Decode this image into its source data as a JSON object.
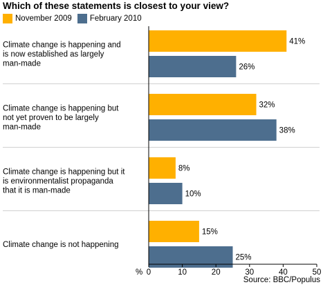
{
  "chart_data": {
    "type": "bar",
    "orientation": "horizontal",
    "title": "Which of these statements is closest to your view?",
    "categories": [
      [
        "Climate change is happening and",
        "is now established as largely",
        "man-made"
      ],
      [
        "Climate change is happening but",
        "not yet proven to be largely",
        "man-made"
      ],
      [
        "Climate change is happening but it",
        "is environmentalist propaganda",
        "that it is man-made"
      ],
      [
        "Climate change is not happening"
      ]
    ],
    "series": [
      {
        "name": "November 2009",
        "color": "#ffb000",
        "values": [
          41,
          32,
          8,
          15
        ],
        "labels": [
          "41%",
          "32%",
          "8%",
          "15%"
        ]
      },
      {
        "name": "February 2010",
        "color": "#4d6e8e",
        "values": [
          26,
          38,
          10,
          25
        ],
        "labels": [
          "26%",
          "38%",
          "10%",
          "25%"
        ]
      }
    ],
    "xlabel": "%",
    "xlim": [
      0,
      50
    ],
    "xticks": [
      "0",
      "10",
      "20",
      "30",
      "40",
      "50"
    ],
    "xtick_values": [
      0,
      10,
      20,
      30,
      40,
      50
    ],
    "grid": false,
    "legend_position": "top-left",
    "source": "Source: BBC/Populus"
  }
}
